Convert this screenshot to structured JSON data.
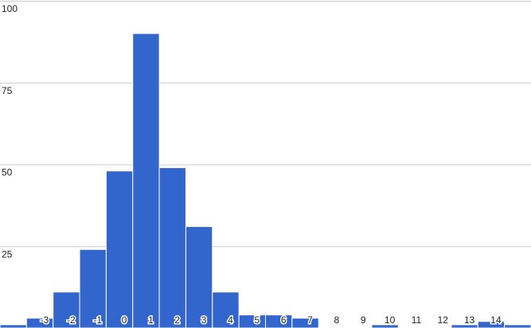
{
  "chart_data": {
    "type": "bar",
    "categories": [
      null,
      "-3",
      "-2",
      "-1",
      "0",
      "1",
      "2",
      "3",
      "4",
      "5",
      "6",
      "7",
      "8",
      "9",
      "10",
      "11",
      "12",
      "13",
      "14",
      null
    ],
    "values": [
      1,
      3,
      11,
      24,
      48,
      90,
      49,
      31,
      11,
      4,
      4,
      3,
      0,
      0,
      1,
      0,
      0,
      1,
      2,
      1
    ],
    "color": "#3366cc",
    "ylim": [
      0,
      100
    ],
    "yticks": [
      25,
      50,
      75,
      100
    ],
    "grid": true
  }
}
